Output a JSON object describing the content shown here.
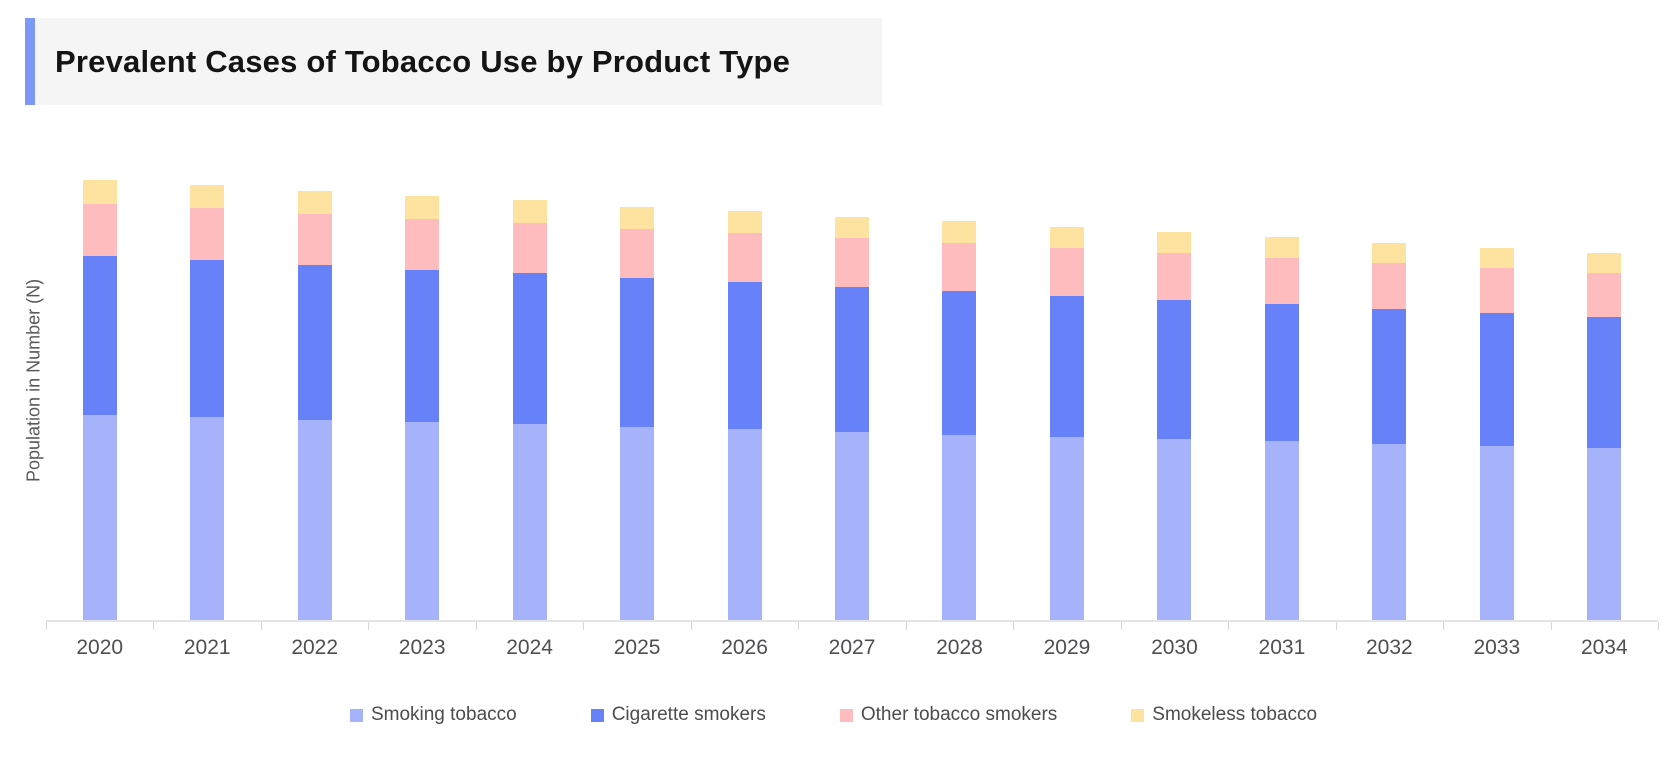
{
  "header": {
    "title": "Prevalent Cases of Tobacco Use by Product Type"
  },
  "chart_data": {
    "type": "bar",
    "stacked": true,
    "title": "Prevalent Cases of Tobacco Use by Product Type",
    "xlabel": "",
    "ylabel": "Population in Number (N)",
    "categories": [
      "2020",
      "2021",
      "2022",
      "2023",
      "2024",
      "2025",
      "2026",
      "2027",
      "2028",
      "2029",
      "2030",
      "2031",
      "2032",
      "2033",
      "2034"
    ],
    "series": [
      {
        "name": "Smoking tobacco",
        "color": "#a6b3fa",
        "values": [
          205,
          203,
          200,
          198,
          196,
          193,
          191,
          188,
          185,
          183,
          181,
          179,
          176,
          174,
          172
        ]
      },
      {
        "name": "Cigarette smokers",
        "color": "#6781f9",
        "values": [
          159,
          157,
          155,
          152,
          151,
          149,
          147,
          145,
          144,
          141,
          139,
          137,
          135,
          133,
          131
        ]
      },
      {
        "name": "Other tobacco smokers",
        "color": "#ffbcbf",
        "values": [
          52,
          52,
          51,
          51,
          50,
          49,
          49,
          49,
          48,
          48,
          47,
          46,
          46,
          45,
          44
        ]
      },
      {
        "name": "Smokeless tobacco",
        "color": "#fee2a0",
        "values": [
          24,
          23,
          23,
          23,
          23,
          22,
          22,
          21,
          22,
          21,
          21,
          21,
          20,
          20,
          20
        ]
      }
    ],
    "value_units": "relative height (y-axis has no numeric tick labels in source)",
    "ylim": [
      0,
      480
    ],
    "grid": false,
    "legend_position": "bottom"
  },
  "colors": {
    "accent_bar": "#7d99f6",
    "title_background": "#f5f5f6",
    "axis_line": "#e4e4e6",
    "tick": "#d6d6d8",
    "axis_text": "#4f4f52",
    "legend_text": "#4c4c4e"
  }
}
